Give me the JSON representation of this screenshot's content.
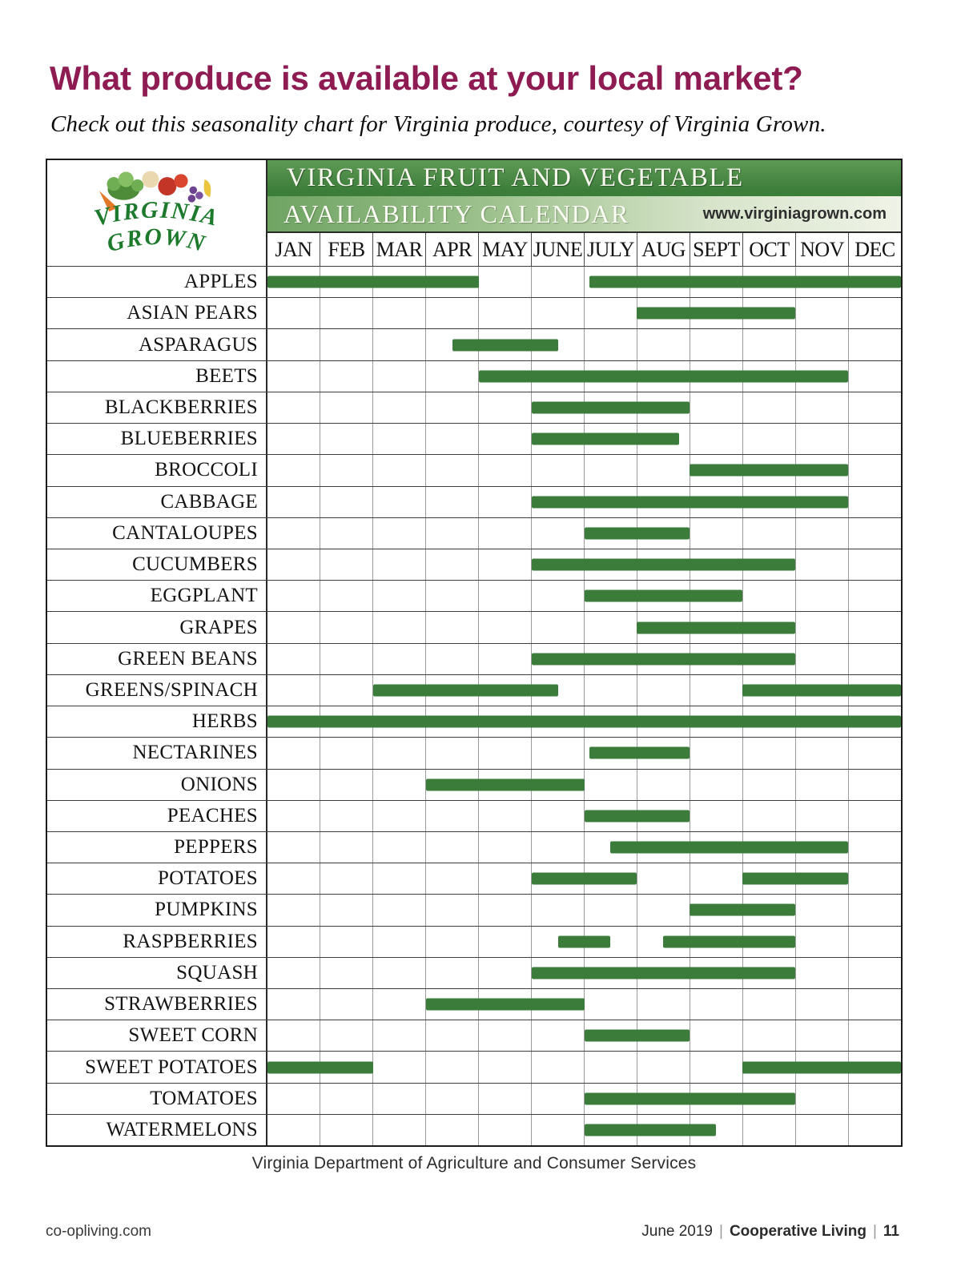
{
  "page": {
    "title": "What produce is available at your local market?",
    "subtitle": "Check out this seasonality chart for Virginia produce, courtesy of Virginia Grown.",
    "caption": "Virginia Department of Agriculture and Consumer Services",
    "footer": {
      "left": "co-opliving.com",
      "right_date": "June 2019",
      "right_separator": "|",
      "right_magazine": "Cooperative Living",
      "right_page": "11"
    }
  },
  "calendar": {
    "logo_line1": "VIRGINIA",
    "logo_line2": "GROWN",
    "banner_line1": "VIRGINIA FRUIT AND VEGETABLE",
    "banner_line2": "AVAILABILITY CALENDAR",
    "website": "www.virginiagrown.com",
    "colors": {
      "title_magenta": "#8e1b52",
      "banner_green": "#3c7d3a",
      "bar_green": "#3b7c3b"
    }
  },
  "chart_data": {
    "type": "gantt",
    "title": "VIRGINIA FRUIT AND VEGETABLE AVAILABILITY CALENDAR",
    "source": "Virginia Department of Agriculture and Consumer Services",
    "unit_note": "bar start/end are month positions: 0 = start of JAN, 12 = end of DEC",
    "bar_color": "#3b7c3b",
    "months": [
      "JAN",
      "FEB",
      "MAR",
      "APR",
      "MAY",
      "JUNE",
      "JULY",
      "AUG",
      "SEPT",
      "OCT",
      "NOV",
      "DEC"
    ],
    "rows": [
      {
        "label": "APPLES",
        "bars": [
          [
            0,
            4
          ],
          [
            6.1,
            12
          ]
        ]
      },
      {
        "label": "ASIAN PEARS",
        "bars": [
          [
            7,
            10
          ]
        ]
      },
      {
        "label": "ASPARAGUS",
        "bars": [
          [
            3.5,
            5.5
          ]
        ]
      },
      {
        "label": "BEETS",
        "bars": [
          [
            4,
            11
          ]
        ]
      },
      {
        "label": "BLACKBERRIES",
        "bars": [
          [
            5,
            8
          ]
        ]
      },
      {
        "label": "BLUEBERRIES",
        "bars": [
          [
            5,
            7.8
          ]
        ]
      },
      {
        "label": "BROCCOLI",
        "bars": [
          [
            8,
            11
          ]
        ]
      },
      {
        "label": "CABBAGE",
        "bars": [
          [
            5,
            11
          ]
        ]
      },
      {
        "label": "CANTALOUPES",
        "bars": [
          [
            6,
            8
          ]
        ]
      },
      {
        "label": "CUCUMBERS",
        "bars": [
          [
            5,
            10
          ]
        ]
      },
      {
        "label": "EGGPLANT",
        "bars": [
          [
            6,
            9
          ]
        ]
      },
      {
        "label": "GRAPES",
        "bars": [
          [
            7,
            10
          ]
        ]
      },
      {
        "label": "GREEN BEANS",
        "bars": [
          [
            5,
            10
          ]
        ]
      },
      {
        "label": "GREENS/SPINACH",
        "bars": [
          [
            2,
            5.5
          ],
          [
            9,
            12
          ]
        ]
      },
      {
        "label": "HERBS",
        "bars": [
          [
            0,
            12
          ]
        ]
      },
      {
        "label": "NECTARINES",
        "bars": [
          [
            6.1,
            8
          ]
        ]
      },
      {
        "label": "ONIONS",
        "bars": [
          [
            3,
            6
          ]
        ]
      },
      {
        "label": "PEACHES",
        "bars": [
          [
            6,
            8
          ]
        ]
      },
      {
        "label": "PEPPERS",
        "bars": [
          [
            6.5,
            11
          ]
        ]
      },
      {
        "label": "POTATOES",
        "bars": [
          [
            5,
            7
          ],
          [
            9,
            11
          ]
        ]
      },
      {
        "label": "PUMPKINS",
        "bars": [
          [
            8,
            10
          ]
        ]
      },
      {
        "label": "RASPBERRIES",
        "bars": [
          [
            5.5,
            6.5
          ],
          [
            7.5,
            10
          ]
        ]
      },
      {
        "label": "SQUASH",
        "bars": [
          [
            5,
            10
          ]
        ]
      },
      {
        "label": "STRAWBERRIES",
        "bars": [
          [
            3,
            6
          ]
        ]
      },
      {
        "label": "SWEET CORN",
        "bars": [
          [
            6,
            8
          ]
        ]
      },
      {
        "label": "SWEET POTATOES",
        "bars": [
          [
            0,
            2
          ],
          [
            9,
            12
          ]
        ]
      },
      {
        "label": "TOMATOES",
        "bars": [
          [
            6,
            10
          ]
        ]
      },
      {
        "label": "WATERMELONS",
        "bars": [
          [
            6,
            8.5
          ]
        ]
      }
    ]
  }
}
